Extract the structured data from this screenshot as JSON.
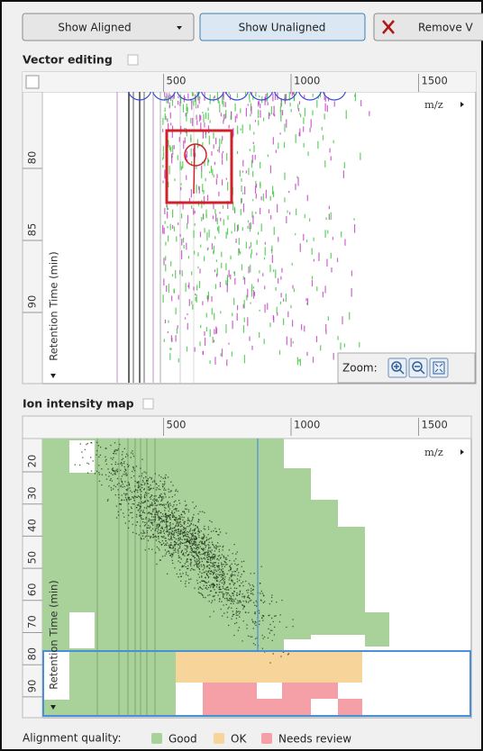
{
  "toolbar": {
    "buttons": [
      "Show Aligned",
      "Show Unaligned",
      "Remove V"
    ]
  },
  "vector_editing": {
    "title": "Vector editing",
    "x_ticks": [
      500,
      1000,
      1500
    ],
    "x_label": "m/z",
    "y_ticks": [
      80,
      85,
      90
    ],
    "y_label": "Retention Time (min)",
    "zoom_label": "Zoom:"
  },
  "ion_intensity_map": {
    "title": "Ion intensity map",
    "x_ticks": [
      500,
      1000,
      1500
    ],
    "x_label": "m/z",
    "y_ticks": [
      20,
      30,
      40,
      50,
      60,
      70,
      80,
      90
    ],
    "y_label": "Retention Time (min)"
  },
  "legend": {
    "title": "Alignment quality:",
    "items": [
      "Good",
      "OK",
      "Needs review"
    ]
  }
}
